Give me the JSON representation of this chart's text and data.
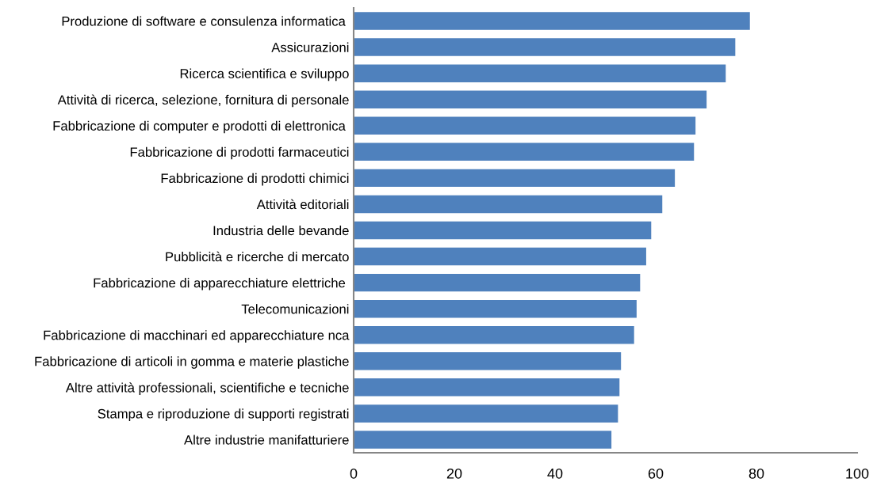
{
  "chart_data": {
    "type": "bar",
    "orientation": "horizontal",
    "categories": [
      "Produzione di software e consulenza informatica ",
      "Assicurazioni",
      "Ricerca scientifica e sviluppo",
      "Attività di ricerca, selezione, fornitura di personale",
      "Fabbricazione di computer e prodotti di elettronica ",
      "Fabbricazione di prodotti farmaceutici",
      "Fabbricazione di prodotti chimici",
      "Attività editoriali",
      "Industria delle bevande",
      "Pubblicità e ricerche di mercato",
      "Fabbricazione di apparecchiature elettriche ",
      "Telecomunicazioni",
      "Fabbricazione di macchinari ed apparecchiature nca",
      "Fabbricazione di articoli in gomma e materie plastiche",
      "Altre attività professionali, scientifiche e tecniche",
      "Stampa e riproduzione di supporti registrati",
      "Altre industrie manifatturiere"
    ],
    "values": [
      78.7,
      75.8,
      73.9,
      70.1,
      67.9,
      67.6,
      63.8,
      61.3,
      59.1,
      58.1,
      56.9,
      56.2,
      55.7,
      53.1,
      52.8,
      52.5,
      51.2
    ],
    "color": "#4f81bd",
    "xlim": [
      0,
      100
    ],
    "xticks": [
      0,
      20,
      40,
      60,
      80,
      100
    ],
    "grid": false
  }
}
